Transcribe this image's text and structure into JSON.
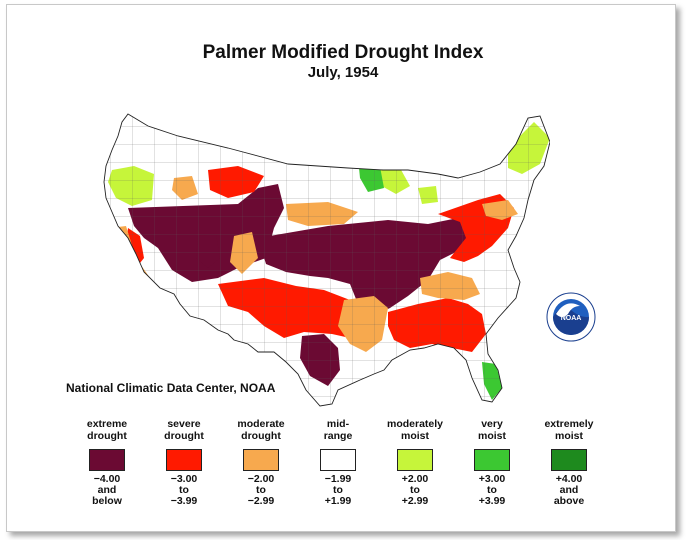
{
  "title": "Palmer Modified Drought Index",
  "subtitle": "July, 1954",
  "credit": "National Climatic Data Center, NOAA",
  "logo": {
    "text": "NOAA",
    "ring_text": "NATIONAL OCEANIC AND ATMOSPHERIC ADMINISTRATION · U.S. DEPARTMENT OF COMMERCE"
  },
  "legend": [
    {
      "line1": "extreme",
      "line2": "drought",
      "range1": "−4.00",
      "range2": "and",
      "range3": "below",
      "color": "#6b0a33"
    },
    {
      "line1": "severe",
      "line2": "drought",
      "range1": "−3.00",
      "range2": "to",
      "range3": "−3.99",
      "color": "#ff1a00"
    },
    {
      "line1": "moderate",
      "line2": "drought",
      "range1": "−2.00",
      "range2": "to",
      "range3": "−2.99",
      "color": "#f7a94e"
    },
    {
      "line1": "mid-",
      "line2": "range",
      "range1": "−1.99",
      "range2": "to",
      "range3": "+1.99",
      "color": "#ffffff"
    },
    {
      "line1": "moderately",
      "line2": "moist",
      "range1": "+2.00",
      "range2": "to",
      "range3": "+2.99",
      "color": "#c6f53a"
    },
    {
      "line1": "very",
      "line2": "moist",
      "range1": "+3.00",
      "range2": "to",
      "range3": "+3.99",
      "color": "#3cc832"
    },
    {
      "line1": "extremely",
      "line2": "moist",
      "range1": "+4.00",
      "range2": "and",
      "range3": "above",
      "color": "#1e8a1e"
    }
  ]
}
